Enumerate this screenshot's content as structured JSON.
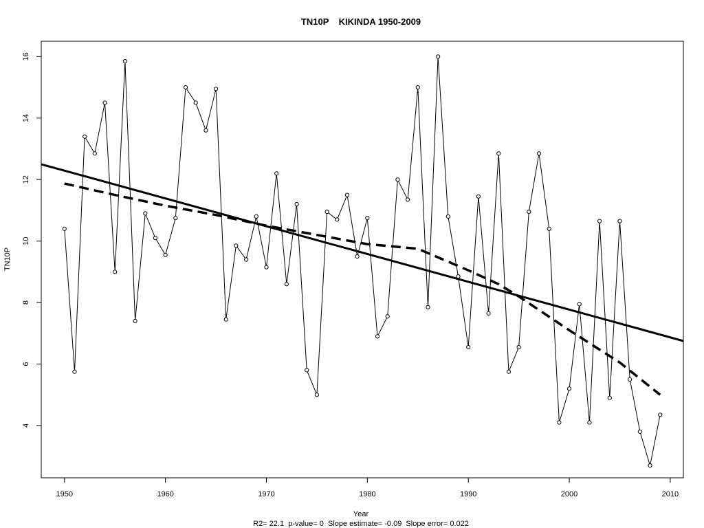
{
  "chart_data": {
    "type": "line",
    "title": "TN10P    KIKINDA 1950-2009",
    "xlabel": "Year",
    "ylabel": "TN10P",
    "footer": "R2= 22.1  p-value= 0  Slope estimate= -0.09  Slope error= 0.022",
    "xlim": [
      1947.7,
      2011.3
    ],
    "ylim": [
      2.3,
      16.5
    ],
    "xticks": [
      1950,
      1960,
      1970,
      1980,
      1990,
      2000,
      2010
    ],
    "yticks": [
      4,
      6,
      8,
      10,
      12,
      14,
      16
    ],
    "grid": false,
    "legend": "none",
    "series": [
      {
        "style": "observed-points",
        "x": [
          1950,
          1951,
          1952,
          1953,
          1954,
          1955,
          1956,
          1957,
          1958,
          1959,
          1960,
          1961,
          1962,
          1963,
          1964,
          1965,
          1966,
          1967,
          1968,
          1969,
          1970,
          1971,
          1972,
          1973,
          1974,
          1975,
          1976,
          1977,
          1978,
          1979,
          1980,
          1981,
          1982,
          1983,
          1984,
          1985,
          1986,
          1987,
          1988,
          1989,
          1990,
          1991,
          1992,
          1993,
          1994,
          1995,
          1996,
          1997,
          1998,
          1999,
          2000,
          2001,
          2002,
          2003,
          2004,
          2005,
          2006,
          2007,
          2008,
          2009
        ],
        "values": [
          10.4,
          5.75,
          13.4,
          12.85,
          14.5,
          9.0,
          15.85,
          7.4,
          10.9,
          10.1,
          9.55,
          10.75,
          15.0,
          14.5,
          13.6,
          14.95,
          7.45,
          9.85,
          9.4,
          10.8,
          9.15,
          12.2,
          8.6,
          11.2,
          5.8,
          5.0,
          10.95,
          10.7,
          11.5,
          9.5,
          10.75,
          6.9,
          7.55,
          12.0,
          11.35,
          15.0,
          7.85,
          16.0,
          10.8,
          8.85,
          6.55,
          11.45,
          7.65,
          12.85,
          5.75,
          6.55,
          10.95,
          12.85,
          10.4,
          4.1,
          5.2,
          7.95,
          4.1,
          10.65,
          4.9,
          10.65,
          5.5,
          3.8,
          2.7,
          4.35
        ]
      },
      {
        "style": "linear-trend",
        "x": [
          1947.7,
          2011.3
        ],
        "values": [
          12.5,
          6.75
        ]
      },
      {
        "style": "smoothed-trend",
        "x": [
          1950,
          1955,
          1960,
          1965,
          1970,
          1975,
          1980,
          1985,
          1990,
          1993,
          1995,
          2000,
          2005,
          2009
        ],
        "values": [
          11.87,
          11.5,
          11.15,
          10.85,
          10.5,
          10.2,
          9.9,
          9.75,
          9.05,
          8.6,
          8.2,
          7.1,
          6.05,
          5.0
        ]
      }
    ]
  }
}
